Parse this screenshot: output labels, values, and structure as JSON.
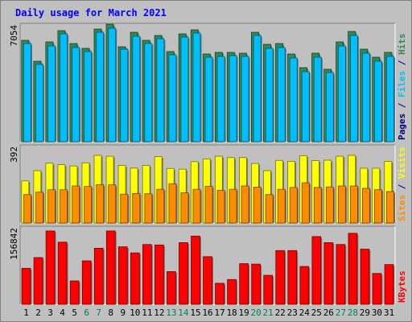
{
  "chart_data": {
    "type": "bar",
    "title": "Daily usage for March 2021",
    "categories": [
      "1",
      "2",
      "3",
      "4",
      "5",
      "6",
      "7",
      "8",
      "9",
      "10",
      "11",
      "12",
      "13",
      "14",
      "15",
      "16",
      "17",
      "18",
      "19",
      "20",
      "21",
      "22",
      "23",
      "24",
      "25",
      "26",
      "27",
      "28",
      "29",
      "30",
      "31"
    ],
    "weekend_days": [
      "6",
      "7",
      "13",
      "14",
      "20",
      "21",
      "27",
      "28"
    ],
    "panels": [
      {
        "name": "hits-files-pages",
        "ymax_label": "7054",
        "ymax": 7054,
        "right_labels": [
          "Pages",
          "/",
          "Files",
          "/",
          "Hits"
        ],
        "series": [
          {
            "name": "Hits",
            "color": "#2e8b57",
            "values": [
              6300,
              5000,
              6200,
              6900,
              6100,
              5800,
              7000,
              7300,
              5900,
              6800,
              6300,
              6600,
              5600,
              6700,
              6950,
              5450,
              5550,
              5550,
              5500,
              6800,
              6050,
              6100,
              5450,
              4600,
              5500,
              4500,
              6200,
              6850,
              5750,
              5250,
              5550
            ]
          },
          {
            "name": "Files",
            "color": "#00bfff",
            "values": [
              6100,
              4800,
              5950,
              6700,
              5850,
              5600,
              6800,
              7050,
              5750,
              6550,
              6100,
              6400,
              5400,
              6500,
              6750,
              5250,
              5300,
              5350,
              5300,
              6600,
              5800,
              5850,
              5200,
              4350,
              5250,
              4300,
              5950,
              6600,
              5500,
              5000,
              5300
            ]
          }
        ]
      },
      {
        "name": "visits-sites",
        "ymax_label": "392",
        "ymax": 392,
        "right_labels": [
          "Sites",
          "/",
          "Visits"
        ],
        "series": [
          {
            "name": "Visits",
            "color": "#ffff00",
            "values": [
              225,
              280,
              320,
              312,
              305,
              322,
              362,
              357,
              308,
              294,
              308,
              355,
              292,
              288,
              328,
              343,
              357,
              350,
              350,
              318,
              280,
              335,
              330,
              360,
              334,
              336,
              357,
              362,
              293,
              293,
              330
            ]
          },
          {
            "name": "Sites",
            "color": "#ff8c00",
            "values": [
              152,
              165,
              178,
              178,
              198,
              195,
              205,
              204,
              154,
              158,
              156,
              180,
              210,
              162,
              180,
              196,
              175,
              180,
              198,
              192,
              152,
              180,
              190,
              215,
              190,
              193,
              198,
              198,
              185,
              178,
              168
            ]
          }
        ]
      },
      {
        "name": "kbytes",
        "ymax_label": "156842",
        "ymax": 156842,
        "right_labels": [
          "KBytes"
        ],
        "series": [
          {
            "name": "KBytes",
            "color": "#ff0000",
            "values": [
              77000,
              100000,
              157000,
              133000,
              50000,
              93000,
              120000,
              157000,
              123000,
              110000,
              128000,
              127000,
              70000,
              132000,
              146000,
              102000,
              45000,
              53000,
              87000,
              86000,
              62000,
              115000,
              115000,
              81000,
              145000,
              132000,
              128000,
              152000,
              118000,
              66000,
              85000
            ]
          }
        ]
      }
    ],
    "colors": {
      "background": "#c0c0c0",
      "title": "#0000ff",
      "weekday_label": "#000000",
      "weekend_label": "#00805a"
    }
  }
}
